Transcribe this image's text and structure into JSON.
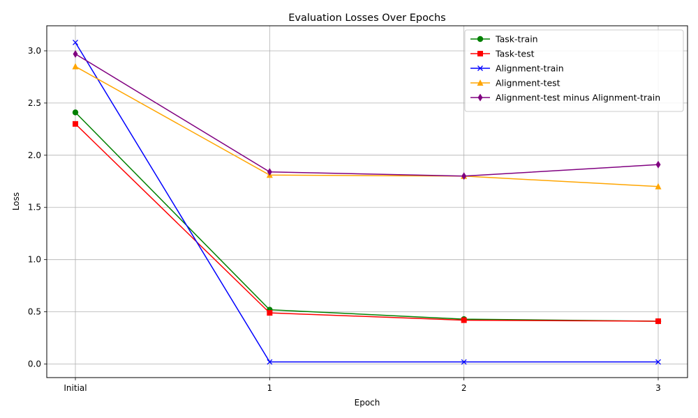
{
  "chart_data": {
    "type": "line",
    "title": "Evaluation Losses Over Epochs",
    "xlabel": "Epoch",
    "ylabel": "Loss",
    "categories": [
      "Initial",
      "1",
      "2",
      "3"
    ],
    "ylim": [
      -0.13,
      3.24
    ],
    "yticks": [
      "0.0",
      "0.5",
      "1.0",
      "1.5",
      "2.0",
      "2.5",
      "3.0"
    ],
    "ytick_values": [
      0,
      0.5,
      1.0,
      1.5,
      2.0,
      2.5,
      3.0
    ],
    "grid": true,
    "legend_position": "top-right",
    "series": [
      {
        "name": "Task-train",
        "color": "#008000",
        "marker": "circle",
        "values": [
          2.41,
          0.52,
          0.43,
          0.41
        ]
      },
      {
        "name": "Task-test",
        "color": "#ff0000",
        "marker": "square",
        "values": [
          2.3,
          0.49,
          0.42,
          0.41
        ]
      },
      {
        "name": "Alignment-train",
        "color": "#0000ff",
        "marker": "x",
        "values": [
          3.08,
          0.02,
          0.02,
          0.02
        ]
      },
      {
        "name": "Alignment-test",
        "color": "#ffa500",
        "marker": "triangle",
        "values": [
          2.85,
          1.81,
          1.8,
          1.7
        ]
      },
      {
        "name": "Alignment-test minus Alignment-train",
        "color": "#800080",
        "marker": "diamond",
        "values": [
          2.97,
          1.84,
          1.8,
          1.91
        ]
      }
    ]
  }
}
